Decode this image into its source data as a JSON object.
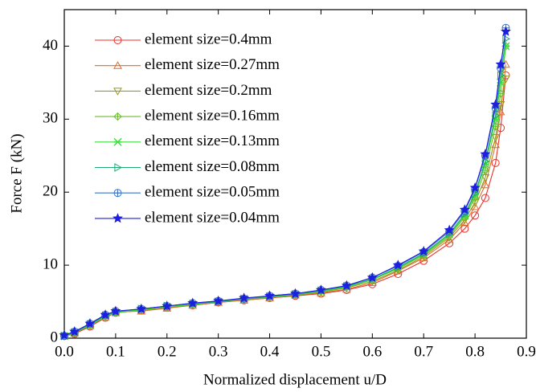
{
  "chart_data": {
    "type": "line",
    "x_label": "Normalized displacement  u/D",
    "y_label": "Force F (kN)",
    "x": [
      0,
      0.02,
      0.05,
      0.08,
      0.1,
      0.15,
      0.2,
      0.25,
      0.3,
      0.35,
      0.4,
      0.45,
      0.5,
      0.55,
      0.6,
      0.65,
      0.7,
      0.75,
      0.78,
      0.8,
      0.82,
      0.84,
      0.85,
      0.86
    ],
    "series": [
      {
        "name": "element size=0.4mm",
        "color": "#e8302a",
        "marker": "circle",
        "values": [
          0.3,
          0.6,
          1.6,
          2.8,
          3.5,
          3.8,
          4.2,
          4.5,
          4.9,
          5.2,
          5.5,
          5.8,
          6.1,
          6.6,
          7.4,
          8.8,
          10.6,
          13.0,
          15.0,
          16.8,
          19.2,
          24.0,
          28.8,
          36.0
        ]
      },
      {
        "name": "element size=0.27mm",
        "color": "#d9702a",
        "marker": "triangle-up",
        "values": [
          0.3,
          0.7,
          1.7,
          2.9,
          3.6,
          3.7,
          4.1,
          4.5,
          4.9,
          5.2,
          5.5,
          5.9,
          6.2,
          6.7,
          7.6,
          9.2,
          11.0,
          13.5,
          15.8,
          18.0,
          21.0,
          26.5,
          31.0,
          37.5
        ]
      },
      {
        "name": "element size=0.2mm",
        "color": "#9a9a1e",
        "marker": "triangle-down",
        "values": [
          0.3,
          0.7,
          1.7,
          2.9,
          3.5,
          3.8,
          4.2,
          4.6,
          5.0,
          5.3,
          5.6,
          5.9,
          6.3,
          6.9,
          7.8,
          9.3,
          11.2,
          13.8,
          16.2,
          18.6,
          22.0,
          27.5,
          32.0,
          35.5
        ]
      },
      {
        "name": "element size=0.16mm",
        "color": "#6cbf2e",
        "marker": "diamond-plus",
        "values": [
          0.3,
          0.7,
          1.8,
          3.0,
          3.5,
          3.9,
          4.3,
          4.6,
          5.0,
          5.3,
          5.6,
          5.9,
          6.4,
          7.0,
          8.0,
          9.5,
          11.4,
          14.0,
          16.6,
          19.2,
          23.0,
          29.0,
          33.5,
          40.0
        ]
      },
      {
        "name": "element size=0.13mm",
        "color": "#3ddc3d",
        "marker": "x-star",
        "values": [
          0.3,
          0.8,
          1.8,
          3.0,
          3.5,
          3.9,
          4.3,
          4.6,
          5.0,
          5.4,
          5.7,
          6.0,
          6.4,
          7.0,
          8.0,
          9.6,
          11.5,
          14.2,
          16.8,
          19.6,
          23.8,
          30.0,
          35.0,
          40.0
        ]
      },
      {
        "name": "element size=0.08mm",
        "color": "#1ea874",
        "marker": "triangle-right",
        "values": [
          0.3,
          0.8,
          1.9,
          3.1,
          3.6,
          4.0,
          4.4,
          4.7,
          5.0,
          5.4,
          5.7,
          6.0,
          6.5,
          7.1,
          8.1,
          9.7,
          11.6,
          14.3,
          17.0,
          19.8,
          24.2,
          30.5,
          36.0,
          41.0
        ]
      },
      {
        "name": "element size=0.05mm",
        "color": "#3a74c4",
        "marker": "circle-plus",
        "values": [
          0.3,
          0.9,
          2.0,
          3.2,
          3.7,
          4.0,
          4.4,
          4.8,
          5.1,
          5.4,
          5.8,
          6.1,
          6.6,
          7.2,
          8.3,
          9.9,
          11.8,
          14.6,
          17.4,
          20.4,
          25.0,
          31.5,
          37.0,
          42.5
        ]
      },
      {
        "name": "element size=0.04mm",
        "color": "#1e1ee0",
        "marker": "star",
        "values": [
          0.4,
          0.9,
          2.0,
          3.2,
          3.7,
          4.0,
          4.4,
          4.8,
          5.1,
          5.5,
          5.8,
          6.1,
          6.6,
          7.2,
          8.3,
          10.0,
          11.9,
          14.8,
          17.6,
          20.6,
          25.2,
          32.0,
          37.5,
          42.0
        ]
      }
    ],
    "xlim": [
      0,
      0.9
    ],
    "xticks": [
      {
        "value": 0,
        "label": "0.0"
      },
      0.1,
      0.2,
      0.3,
      0.4,
      0.5,
      0.6,
      0.7,
      0.8,
      0.9
    ],
    "ylim": [
      0,
      45
    ],
    "yticks": [
      0,
      10,
      20,
      30,
      40
    ],
    "grid": false,
    "legend": "upper-left"
  }
}
